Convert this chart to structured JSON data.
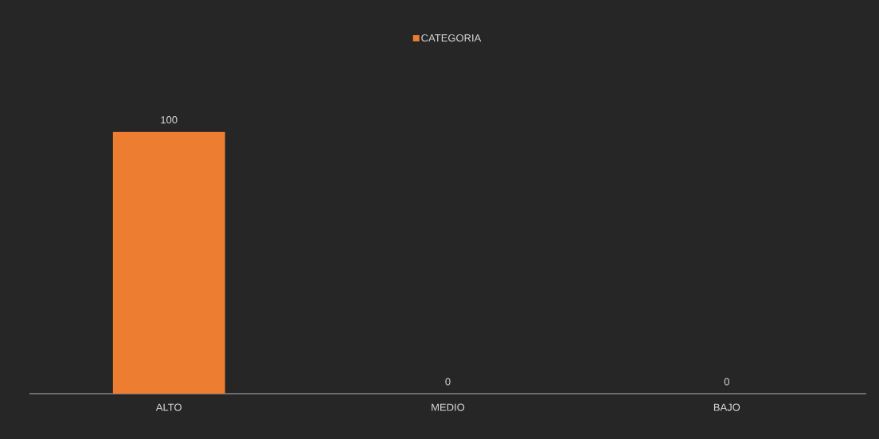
{
  "chart_data": {
    "type": "bar",
    "categories": [
      "ALTO",
      "MEDIO",
      "BAJO"
    ],
    "series": [
      {
        "name": "CATEGORIA",
        "color": "#ed7d31",
        "values": [
          100,
          0,
          0
        ]
      }
    ],
    "data_labels": true,
    "legend": "top"
  }
}
